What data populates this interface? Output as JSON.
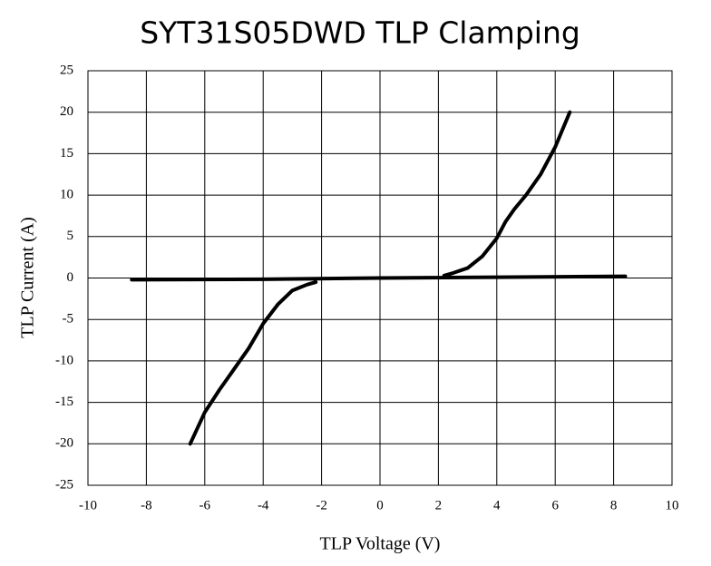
{
  "chart_data": {
    "type": "line",
    "title": "SYT31S05DWD TLP Clamping",
    "x_label": "TLP Voltage (V)",
    "y_label": "TLP Current (A)",
    "x": [
      -8.5,
      -4,
      0,
      4,
      8.4,
      null,
      2.2,
      2.5,
      3,
      3.5,
      4,
      4.3,
      4.6,
      5,
      5.5,
      6,
      6.5,
      null,
      -2.2,
      -2.5,
      -3,
      -3.5,
      -4,
      -4.5,
      -5,
      -5.5,
      -6,
      -6.5
    ],
    "series": [
      {
        "color": "#000000",
        "values": [
          -0.2,
          -0.15,
          0,
          0.1,
          0.2,
          null,
          0.3,
          0.6,
          1.2,
          2.6,
          4.8,
          6.8,
          8.3,
          10,
          12.5,
          15.8,
          20,
          null,
          -0.5,
          -0.8,
          -1.5,
          -3.2,
          -5.5,
          -8.5,
          -11,
          -13.5,
          -16.2,
          -20
        ]
      }
    ],
    "xlim": [
      -10,
      10
    ],
    "ylim": [
      -25,
      25
    ],
    "xticks": [
      -10,
      -8,
      -6,
      -4,
      -2,
      0,
      2,
      4,
      6,
      8,
      10
    ],
    "yticks": [
      -25,
      -20,
      -15,
      -10,
      -5,
      0,
      5,
      10,
      15,
      20,
      25
    ],
    "grid": true
  }
}
